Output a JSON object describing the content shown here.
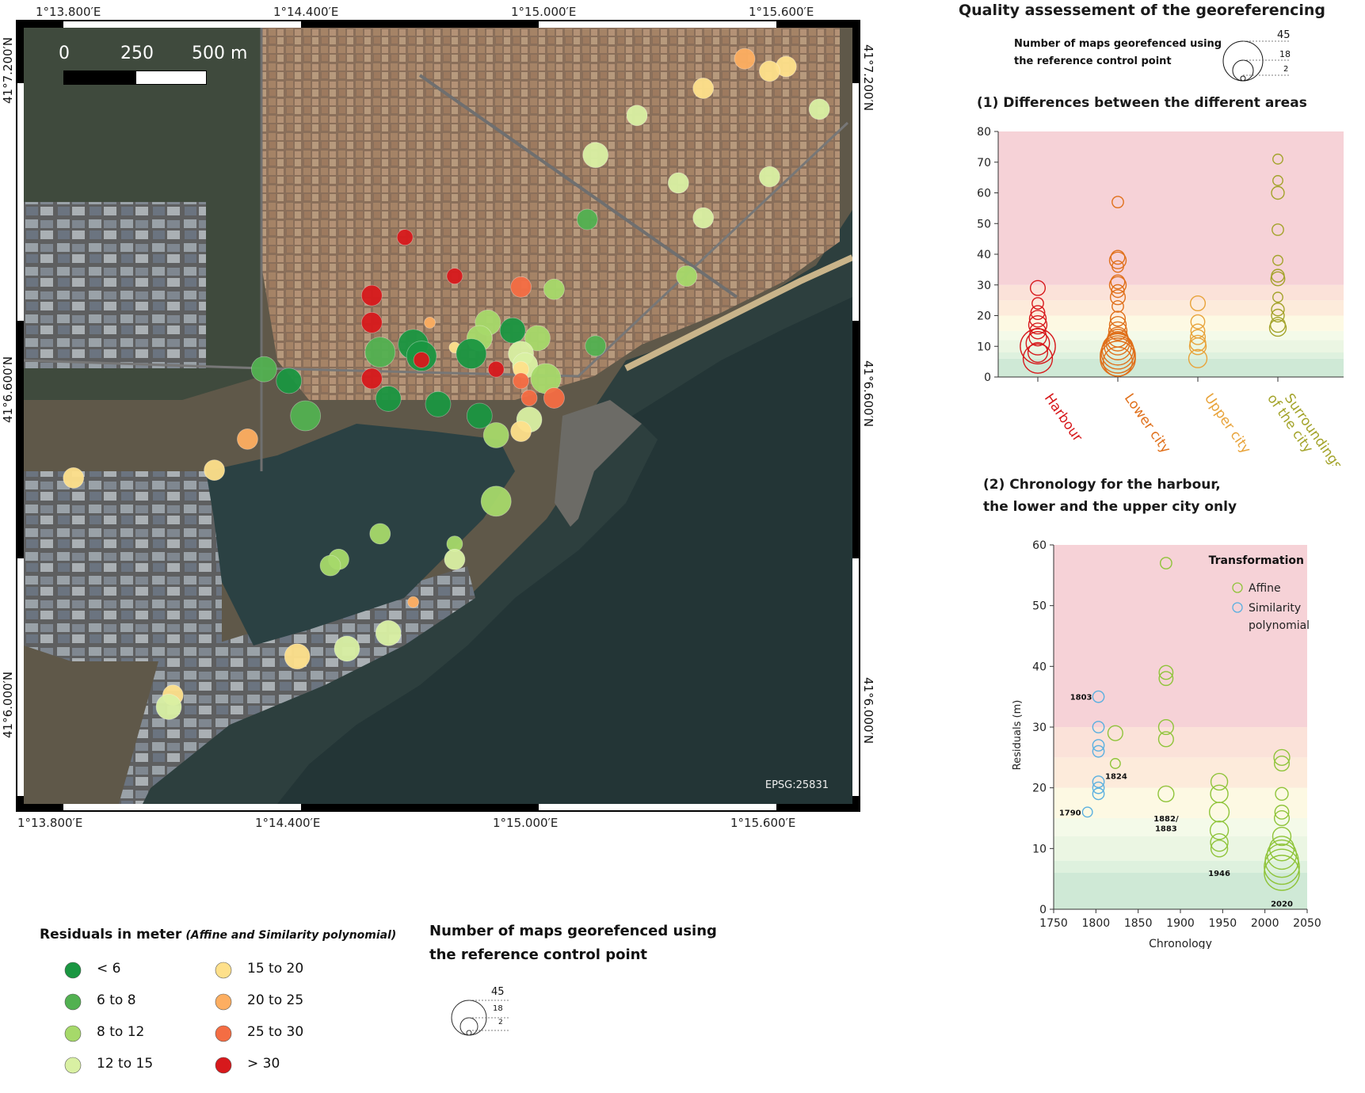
{
  "map": {
    "scalebar": {
      "labels": [
        "0",
        "250",
        "500 m"
      ]
    },
    "crs_label": "EPSG:25831",
    "top_lon_ticks": [
      "1°13.800′E",
      "1°14.400′E",
      "1°15.000′E",
      "1°15.600′E"
    ],
    "bottom_lon_ticks": [
      "1°13.800′E",
      "1°14.400′E",
      "1°15.000′E",
      "1°15.600′E"
    ],
    "left_lat_ticks": [
      "41°7.200′N",
      "41°6.600′N",
      "41°6.000′N"
    ],
    "right_lat_ticks": [
      "41°7.200′N",
      "41°6.600′N",
      "41°6.000′N"
    ],
    "points": [
      {
        "x": 0.87,
        "y": 0.04,
        "c": 5,
        "s": 3
      },
      {
        "x": 0.92,
        "y": 0.05,
        "c": 4,
        "s": 3
      },
      {
        "x": 0.9,
        "y": 0.056,
        "c": 4,
        "s": 3
      },
      {
        "x": 0.82,
        "y": 0.078,
        "c": 4,
        "s": 3
      },
      {
        "x": 0.96,
        "y": 0.105,
        "c": 3,
        "s": 3
      },
      {
        "x": 0.74,
        "y": 0.113,
        "c": 3,
        "s": 3
      },
      {
        "x": 0.69,
        "y": 0.164,
        "c": 3,
        "s": 4
      },
      {
        "x": 0.79,
        "y": 0.2,
        "c": 3,
        "s": 3
      },
      {
        "x": 0.9,
        "y": 0.192,
        "c": 3,
        "s": 3
      },
      {
        "x": 0.68,
        "y": 0.247,
        "c": 1,
        "s": 3
      },
      {
        "x": 0.82,
        "y": 0.245,
        "c": 3,
        "s": 3
      },
      {
        "x": 0.8,
        "y": 0.32,
        "c": 2,
        "s": 3
      },
      {
        "x": 0.46,
        "y": 0.27,
        "c": 7,
        "s": 2
      },
      {
        "x": 0.52,
        "y": 0.32,
        "c": 7,
        "s": 2
      },
      {
        "x": 0.42,
        "y": 0.345,
        "c": 7,
        "s": 3
      },
      {
        "x": 0.6,
        "y": 0.334,
        "c": 6,
        "s": 3
      },
      {
        "x": 0.64,
        "y": 0.337,
        "c": 2,
        "s": 3
      },
      {
        "x": 0.49,
        "y": 0.38,
        "c": 5,
        "s": 1
      },
      {
        "x": 0.42,
        "y": 0.38,
        "c": 7,
        "s": 3
      },
      {
        "x": 0.56,
        "y": 0.38,
        "c": 2,
        "s": 4
      },
      {
        "x": 0.59,
        "y": 0.39,
        "c": 0,
        "s": 4
      },
      {
        "x": 0.62,
        "y": 0.4,
        "c": 2,
        "s": 4
      },
      {
        "x": 0.55,
        "y": 0.4,
        "c": 2,
        "s": 4
      },
      {
        "x": 0.52,
        "y": 0.412,
        "c": 4,
        "s": 1
      },
      {
        "x": 0.43,
        "y": 0.418,
        "c": 1,
        "s": 5
      },
      {
        "x": 0.47,
        "y": 0.408,
        "c": 0,
        "s": 5
      },
      {
        "x": 0.54,
        "y": 0.42,
        "c": 0,
        "s": 5
      },
      {
        "x": 0.6,
        "y": 0.42,
        "c": 3,
        "s": 4
      },
      {
        "x": 0.605,
        "y": 0.435,
        "c": 3,
        "s": 4
      },
      {
        "x": 0.48,
        "y": 0.423,
        "c": 0,
        "s": 5
      },
      {
        "x": 0.48,
        "y": 0.428,
        "c": 7,
        "s": 2
      },
      {
        "x": 0.69,
        "y": 0.41,
        "c": 1,
        "s": 3
      },
      {
        "x": 0.6,
        "y": 0.44,
        "c": 4,
        "s": 2
      },
      {
        "x": 0.57,
        "y": 0.44,
        "c": 7,
        "s": 2
      },
      {
        "x": 0.63,
        "y": 0.452,
        "c": 2,
        "s": 5
      },
      {
        "x": 0.6,
        "y": 0.455,
        "c": 6,
        "s": 2
      },
      {
        "x": 0.42,
        "y": 0.452,
        "c": 7,
        "s": 3
      },
      {
        "x": 0.29,
        "y": 0.44,
        "c": 1,
        "s": 4
      },
      {
        "x": 0.32,
        "y": 0.455,
        "c": 0,
        "s": 4
      },
      {
        "x": 0.44,
        "y": 0.478,
        "c": 0,
        "s": 4
      },
      {
        "x": 0.5,
        "y": 0.485,
        "c": 0,
        "s": 4
      },
      {
        "x": 0.61,
        "y": 0.477,
        "c": 6,
        "s": 2
      },
      {
        "x": 0.64,
        "y": 0.477,
        "c": 6,
        "s": 3
      },
      {
        "x": 0.34,
        "y": 0.5,
        "c": 1,
        "s": 5
      },
      {
        "x": 0.55,
        "y": 0.5,
        "c": 0,
        "s": 4
      },
      {
        "x": 0.61,
        "y": 0.505,
        "c": 3,
        "s": 4
      },
      {
        "x": 0.6,
        "y": 0.52,
        "c": 4,
        "s": 3
      },
      {
        "x": 0.57,
        "y": 0.525,
        "c": 2,
        "s": 4
      },
      {
        "x": 0.27,
        "y": 0.53,
        "c": 5,
        "s": 3
      },
      {
        "x": 0.23,
        "y": 0.57,
        "c": 4,
        "s": 3
      },
      {
        "x": 0.06,
        "y": 0.58,
        "c": 4,
        "s": 3
      },
      {
        "x": 0.57,
        "y": 0.61,
        "c": 2,
        "s": 5
      },
      {
        "x": 0.43,
        "y": 0.652,
        "c": 2,
        "s": 3
      },
      {
        "x": 0.52,
        "y": 0.665,
        "c": 2,
        "s": 2
      },
      {
        "x": 0.52,
        "y": 0.685,
        "c": 3,
        "s": 3
      },
      {
        "x": 0.38,
        "y": 0.685,
        "c": 2,
        "s": 3
      },
      {
        "x": 0.37,
        "y": 0.693,
        "c": 2,
        "s": 3
      },
      {
        "x": 0.47,
        "y": 0.74,
        "c": 5,
        "s": 1
      },
      {
        "x": 0.44,
        "y": 0.78,
        "c": 3,
        "s": 4
      },
      {
        "x": 0.39,
        "y": 0.8,
        "c": 3,
        "s": 4
      },
      {
        "x": 0.33,
        "y": 0.81,
        "c": 4,
        "s": 4
      },
      {
        "x": 0.18,
        "y": 0.86,
        "c": 4,
        "s": 3
      },
      {
        "x": 0.175,
        "y": 0.875,
        "c": 3,
        "s": 4
      }
    ]
  },
  "legend": {
    "residuals_title": "Residuals in meter",
    "residuals_subtitle": "(Affine and Similarity polynomial)",
    "classes": [
      {
        "label": "< 6",
        "color": "#1a9641"
      },
      {
        "label": "6 to 8",
        "color": "#52b151"
      },
      {
        "label": "8 to 12",
        "color": "#a6d96a"
      },
      {
        "label": "12 to 15",
        "color": "#d9f0a3"
      },
      {
        "label": "15 to 20",
        "color": "#fee08b"
      },
      {
        "label": "20 to 25",
        "color": "#fdae61"
      },
      {
        "label": "25 to 30",
        "color": "#f46d43"
      },
      {
        "label": "> 30",
        "color": "#d7191c"
      }
    ],
    "size_title_1": "Number of maps georefenced using",
    "size_title_2": "the reference control point",
    "size_values": [
      "45",
      "18",
      "2"
    ]
  },
  "panel": {
    "main_title": "Quality assessement of the georeferencing",
    "size_title_1": "Number of maps georefenced using",
    "size_title_2": "the reference control point",
    "size_values": [
      "45",
      "18",
      "2"
    ],
    "chart1_title": "(1) Differences between the different areas",
    "chart2_title_1": "(2) Chronology for the harbour,",
    "chart2_title_2": "the lower and the upper city only"
  },
  "chart_data": [
    {
      "type": "scatter",
      "title": "(1) Differences between the different areas",
      "categories": [
        "Harbour",
        "Lower city",
        "Upper city",
        "Surroundings of the city"
      ],
      "category_colors": [
        "#d7191c",
        "#e0701b",
        "#e8a33a",
        "#a3a32a"
      ],
      "ylim": [
        0,
        80
      ],
      "yticks": [
        0,
        10,
        20,
        30,
        40,
        50,
        60,
        70,
        80
      ],
      "bands": [
        {
          "from": 0,
          "to": 6,
          "color": "#cfe9d6"
        },
        {
          "from": 6,
          "to": 8,
          "color": "#def1de"
        },
        {
          "from": 8,
          "to": 12,
          "color": "#ebf6e3"
        },
        {
          "from": 12,
          "to": 15,
          "color": "#f4fae9"
        },
        {
          "from": 15,
          "to": 20,
          "color": "#fdf9e3"
        },
        {
          "from": 20,
          "to": 25,
          "color": "#fdebdb"
        },
        {
          "from": 25,
          "to": 30,
          "color": "#fbe2d9"
        },
        {
          "from": 30,
          "to": 80,
          "color": "#f6d2d7"
        }
      ],
      "points": [
        {
          "cat": 0,
          "y": 29,
          "n": 6
        },
        {
          "cat": 0,
          "y": 24,
          "n": 3
        },
        {
          "cat": 0,
          "y": 21,
          "n": 5
        },
        {
          "cat": 0,
          "y": 19,
          "n": 8
        },
        {
          "cat": 0,
          "y": 17,
          "n": 10
        },
        {
          "cat": 0,
          "y": 15,
          "n": 7
        },
        {
          "cat": 0,
          "y": 13,
          "n": 9
        },
        {
          "cat": 0,
          "y": 11,
          "n": 18
        },
        {
          "cat": 0,
          "y": 10,
          "n": 45
        },
        {
          "cat": 0,
          "y": 8,
          "n": 12
        },
        {
          "cat": 0,
          "y": 6,
          "n": 30
        },
        {
          "cat": 1,
          "y": 57,
          "n": 3
        },
        {
          "cat": 1,
          "y": 39,
          "n": 5
        },
        {
          "cat": 1,
          "y": 38,
          "n": 8
        },
        {
          "cat": 1,
          "y": 36,
          "n": 3
        },
        {
          "cat": 1,
          "y": 31,
          "n": 5
        },
        {
          "cat": 1,
          "y": 30,
          "n": 8
        },
        {
          "cat": 1,
          "y": 28,
          "n": 4
        },
        {
          "cat": 1,
          "y": 26,
          "n": 6
        },
        {
          "cat": 1,
          "y": 23,
          "n": 3
        },
        {
          "cat": 1,
          "y": 19,
          "n": 6
        },
        {
          "cat": 1,
          "y": 17,
          "n": 8
        },
        {
          "cat": 1,
          "y": 15,
          "n": 10
        },
        {
          "cat": 1,
          "y": 13,
          "n": 12
        },
        {
          "cat": 1,
          "y": 12,
          "n": 15
        },
        {
          "cat": 1,
          "y": 11,
          "n": 18
        },
        {
          "cat": 1,
          "y": 10,
          "n": 25
        },
        {
          "cat": 1,
          "y": 9,
          "n": 35
        },
        {
          "cat": 1,
          "y": 8,
          "n": 40
        },
        {
          "cat": 1,
          "y": 7,
          "n": 45
        },
        {
          "cat": 1,
          "y": 6,
          "n": 45
        },
        {
          "cat": 1,
          "y": 5,
          "n": 30
        },
        {
          "cat": 2,
          "y": 24,
          "n": 6
        },
        {
          "cat": 2,
          "y": 18,
          "n": 5
        },
        {
          "cat": 2,
          "y": 15,
          "n": 5
        },
        {
          "cat": 2,
          "y": 13,
          "n": 6
        },
        {
          "cat": 2,
          "y": 11,
          "n": 7
        },
        {
          "cat": 2,
          "y": 10,
          "n": 8
        },
        {
          "cat": 2,
          "y": 6,
          "n": 10
        },
        {
          "cat": 3,
          "y": 71,
          "n": 2
        },
        {
          "cat": 3,
          "y": 64,
          "n": 2
        },
        {
          "cat": 3,
          "y": 60,
          "n": 4
        },
        {
          "cat": 3,
          "y": 48,
          "n": 3
        },
        {
          "cat": 3,
          "y": 38,
          "n": 2
        },
        {
          "cat": 3,
          "y": 33,
          "n": 4
        },
        {
          "cat": 3,
          "y": 32,
          "n": 5
        },
        {
          "cat": 3,
          "y": 26,
          "n": 2
        },
        {
          "cat": 3,
          "y": 22,
          "n": 4
        },
        {
          "cat": 3,
          "y": 20,
          "n": 4
        },
        {
          "cat": 3,
          "y": 17,
          "n": 6
        },
        {
          "cat": 3,
          "y": 16,
          "n": 8
        }
      ]
    },
    {
      "type": "scatter",
      "title": "(2) Chronology for the harbour, the lower and the upper city only",
      "xlabel": "Chronology",
      "ylabel": "Residuals (m)",
      "xlim": [
        1750,
        2050
      ],
      "ylim": [
        0,
        60
      ],
      "xticks": [
        1750,
        1800,
        1850,
        1900,
        1950,
        2000,
        2050
      ],
      "yticks": [
        0,
        10,
        20,
        30,
        40,
        50,
        60
      ],
      "legend_title": "Transformation",
      "series": [
        {
          "name": "Affine",
          "color": "#8fc43a",
          "points": [
            {
              "x": 1823,
              "y": 29,
              "n": 6
            },
            {
              "x": 1823,
              "y": 24,
              "n": 2
            },
            {
              "x": 1883,
              "y": 57,
              "n": 3
            },
            {
              "x": 1883,
              "y": 39,
              "n": 5
            },
            {
              "x": 1883,
              "y": 38,
              "n": 5
            },
            {
              "x": 1883,
              "y": 30,
              "n": 6
            },
            {
              "x": 1883,
              "y": 28,
              "n": 6
            },
            {
              "x": 1883,
              "y": 19,
              "n": 7
            },
            {
              "x": 1946,
              "y": 21,
              "n": 8
            },
            {
              "x": 1946,
              "y": 19,
              "n": 9
            },
            {
              "x": 1946,
              "y": 16,
              "n": 12
            },
            {
              "x": 1946,
              "y": 13,
              "n": 10
            },
            {
              "x": 1946,
              "y": 11,
              "n": 9
            },
            {
              "x": 1946,
              "y": 10,
              "n": 8
            },
            {
              "x": 2020,
              "y": 25,
              "n": 7
            },
            {
              "x": 2020,
              "y": 24,
              "n": 6
            },
            {
              "x": 2020,
              "y": 19,
              "n": 4
            },
            {
              "x": 2020,
              "y": 16,
              "n": 5
            },
            {
              "x": 2020,
              "y": 15,
              "n": 6
            },
            {
              "x": 2020,
              "y": 12,
              "n": 10
            },
            {
              "x": 2020,
              "y": 10,
              "n": 20
            },
            {
              "x": 2020,
              "y": 9,
              "n": 30
            },
            {
              "x": 2020,
              "y": 8,
              "n": 40
            },
            {
              "x": 2020,
              "y": 7,
              "n": 45
            },
            {
              "x": 2020,
              "y": 6,
              "n": 45
            }
          ]
        },
        {
          "name": "Similarity polynomial",
          "color": "#5ab0e0",
          "points": [
            {
              "x": 1790,
              "y": 16,
              "n": 2
            },
            {
              "x": 1803,
              "y": 35,
              "n": 3
            },
            {
              "x": 1803,
              "y": 30,
              "n": 3
            },
            {
              "x": 1803,
              "y": 27,
              "n": 3
            },
            {
              "x": 1803,
              "y": 26,
              "n": 3
            },
            {
              "x": 1803,
              "y": 21,
              "n": 3
            },
            {
              "x": 1803,
              "y": 20,
              "n": 3
            },
            {
              "x": 1803,
              "y": 19,
              "n": 3
            }
          ]
        }
      ],
      "bands": [
        {
          "from": 0,
          "to": 6,
          "color": "#cfe9d6"
        },
        {
          "from": 6,
          "to": 8,
          "color": "#def1de"
        },
        {
          "from": 8,
          "to": 12,
          "color": "#ebf6e3"
        },
        {
          "from": 12,
          "to": 15,
          "color": "#f4fae9"
        },
        {
          "from": 15,
          "to": 20,
          "color": "#fdf9e3"
        },
        {
          "from": 20,
          "to": 25,
          "color": "#fdebdb"
        },
        {
          "from": 25,
          "to": 30,
          "color": "#fbe2d9"
        },
        {
          "from": 30,
          "to": 60,
          "color": "#f6d2d7"
        }
      ],
      "annotations": [
        {
          "x": 1803,
          "y": 35,
          "text": "1803"
        },
        {
          "x": 1824,
          "y": 22,
          "text": "1824"
        },
        {
          "x": 1790,
          "y": 16,
          "text": "1790"
        },
        {
          "x": 1883,
          "y": 15,
          "text": "1882/"
        },
        {
          "x": 1883,
          "y": 13.4,
          "text": "1883"
        },
        {
          "x": 1946,
          "y": 6,
          "text": "1946"
        },
        {
          "x": 2020,
          "y": 1,
          "text": "2020"
        }
      ]
    }
  ]
}
